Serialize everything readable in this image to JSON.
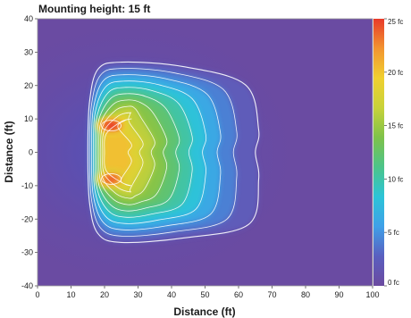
{
  "chart_data": {
    "type": "heatmap",
    "title": "Mounting height: 15 ft",
    "xlabel": "Distance (ft)",
    "ylabel": "Distance (ft)",
    "xlim": [
      0,
      100
    ],
    "ylim": [
      -40,
      40
    ],
    "xticks": [
      "0",
      "10",
      "20",
      "30",
      "40",
      "50",
      "60",
      "70",
      "80",
      "90",
      "100"
    ],
    "yticks": [
      "40",
      "30",
      "20",
      "10",
      "0",
      "-10",
      "-20",
      "-30",
      "-40"
    ],
    "colorbar": {
      "min": 0,
      "max": 25,
      "unit": "fc",
      "ticks": [
        "25 fc",
        "20 fc",
        "15 fc",
        "10 fc",
        "5 fc",
        "0 fc"
      ],
      "tick_values": [
        25,
        20,
        15,
        10,
        5,
        0
      ],
      "colors": [
        "#6b4aa0",
        "#5a5fc0",
        "#3fa0e8",
        "#2cc4d8",
        "#4cc48a",
        "#7ec24a",
        "#c8d23a",
        "#f0d030",
        "#f29430",
        "#e83a2a"
      ]
    },
    "contour_levels_fc": [
      1,
      3,
      5,
      7,
      9,
      11,
      13,
      15,
      17,
      19
    ],
    "hotspots": [
      {
        "x": 22,
        "y": 8,
        "value": 25
      },
      {
        "x": 22,
        "y": -8,
        "value": 24
      }
    ],
    "background_fc": 1
  }
}
